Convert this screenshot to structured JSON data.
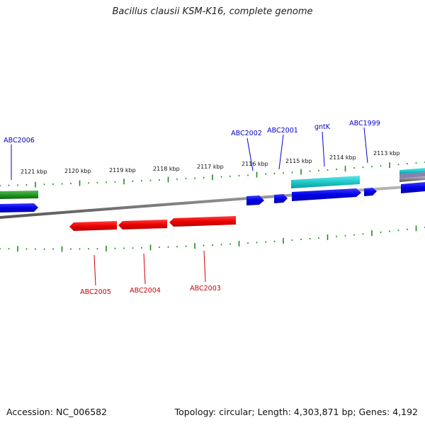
{
  "title": "Bacillus clausii KSM-K16, complete genome",
  "footer": {
    "accession": "Accession: NC_006582",
    "summary": "Topology: circular; Length: 4,303,871 bp; Genes: 4,192"
  },
  "colors": {
    "forward_gene": "#0000ee",
    "reverse_gene": "#ee0000",
    "highlight_gene": "#20c8c8",
    "other_gene": "#229922",
    "tick": "#228822",
    "backbone": "#888888"
  },
  "ruler_labels": [
    "2121 kbp",
    "2120 kbp",
    "2119 kbp",
    "2118 kbp",
    "2117 kbp",
    "2116 kbp",
    "2115 kbp",
    "2114 kbp",
    "2113 kbp"
  ],
  "forward_labels": [
    "ABC2006",
    "ABC2002",
    "ABC2001",
    "gntK",
    "ABC1999"
  ],
  "reverse_labels": [
    "ABC2005",
    "ABC2004",
    "ABC2003"
  ]
}
